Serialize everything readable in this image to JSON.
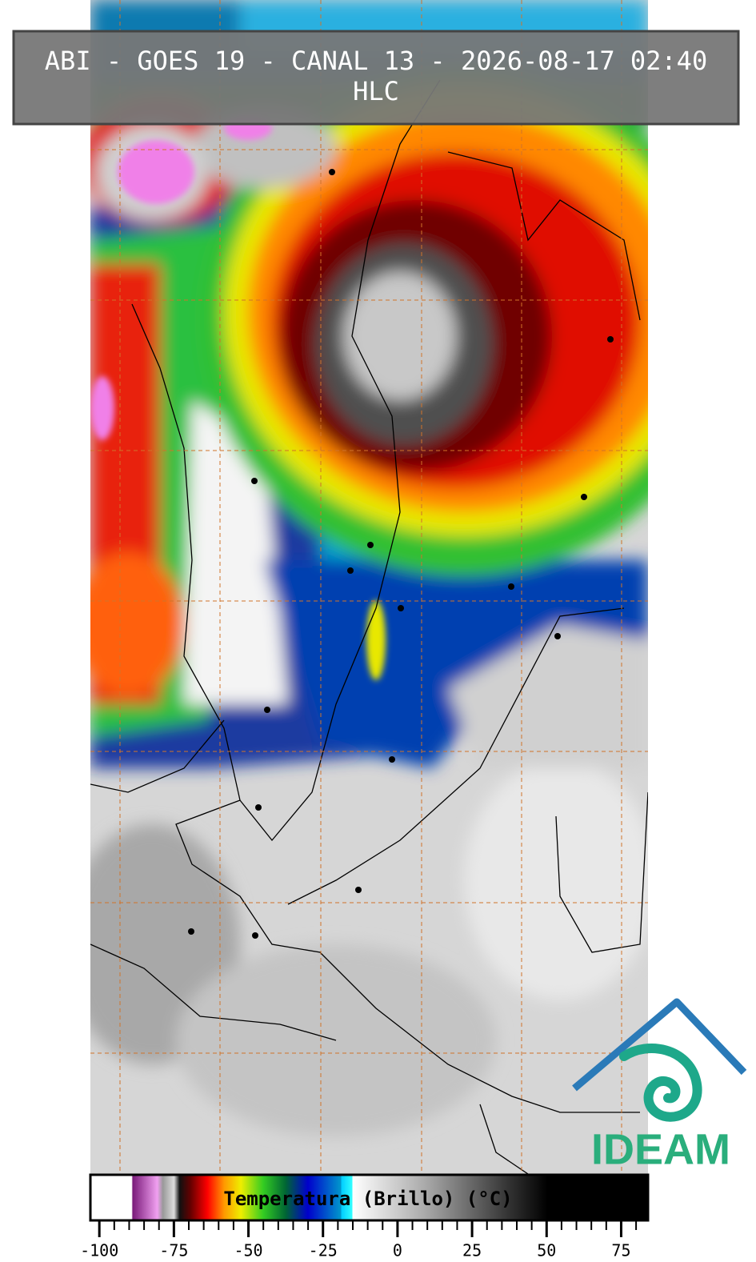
{
  "header": {
    "title": "ABI - GOES 19 - CANAL 13 - 2026-08-17 02:40",
    "subtitle": "HLC"
  },
  "colorbar": {
    "label": "Temperatura (Brillo) (°C)",
    "range": [
      -103,
      84
    ],
    "ticks": [
      -100,
      -75,
      -50,
      -25,
      0,
      25,
      50,
      75
    ],
    "minor_ticks": [
      -95,
      -90,
      -85,
      -80,
      -70,
      -65,
      -60,
      -55,
      -45,
      -40,
      -35,
      -30,
      -20,
      -15,
      -10,
      -5,
      5,
      10,
      15,
      20,
      30,
      35,
      40,
      45,
      55,
      60,
      65,
      70,
      80
    ]
  },
  "logo": {
    "text": "IDEAM"
  }
}
